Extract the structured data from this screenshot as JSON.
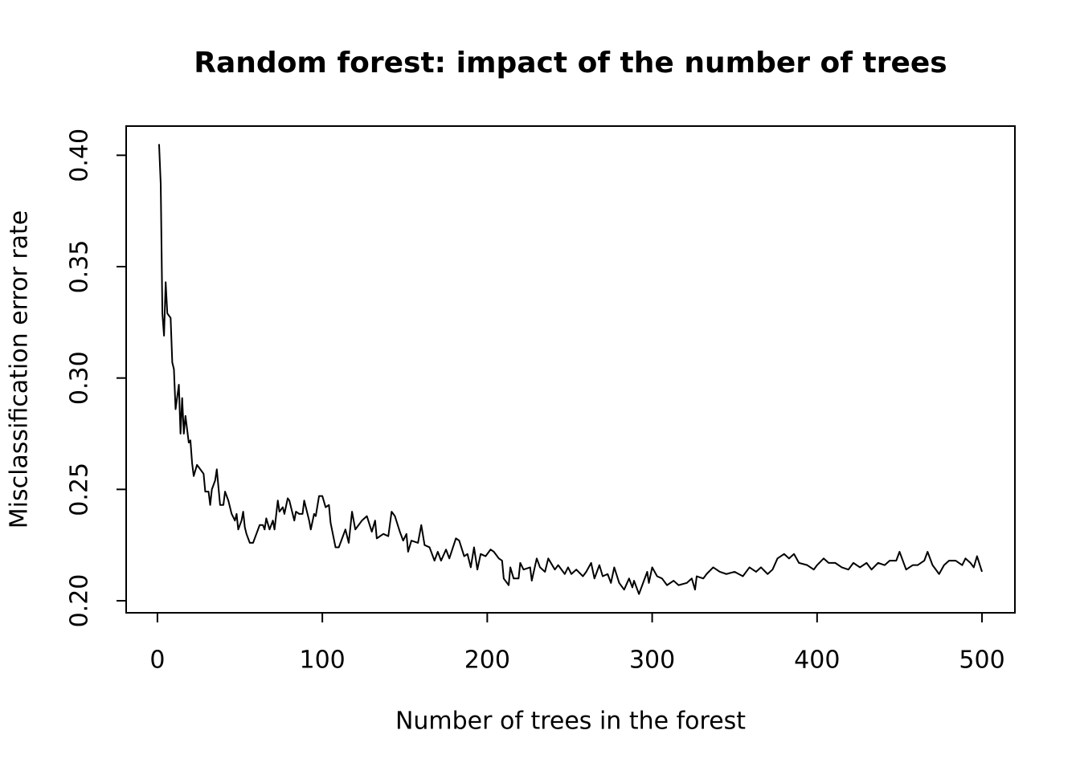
{
  "chart_data": {
    "type": "line",
    "title": "Random forest: impact of the number of trees",
    "x_label": "Number of trees in the forest",
    "y_label": "Misclassification error rate",
    "color": "#000000",
    "x": [
      1,
      2,
      3,
      4,
      5,
      6,
      8,
      9,
      10,
      11,
      13,
      14,
      15,
      16,
      17,
      19,
      20,
      21,
      22,
      24,
      26,
      28,
      29,
      31,
      32,
      33,
      35,
      36,
      38,
      40,
      41,
      43,
      45,
      47,
      48,
      49,
      51,
      52,
      53,
      54,
      56,
      58,
      60,
      62,
      64,
      65,
      66,
      68,
      70,
      71,
      73,
      74,
      76,
      77,
      79,
      80,
      82,
      83,
      84,
      86,
      88,
      89,
      91,
      92,
      93,
      95,
      96,
      98,
      100,
      102,
      104,
      105,
      108,
      110,
      112,
      114,
      116,
      118,
      120,
      124,
      127,
      130,
      132,
      133,
      137,
      140,
      142,
      144,
      147,
      149,
      151,
      152,
      154,
      158,
      160,
      162,
      165,
      168,
      170,
      172,
      175,
      177,
      181,
      183,
      186,
      188,
      190,
      192,
      194,
      196,
      199,
      202,
      204,
      207,
      209,
      210,
      213,
      214,
      216,
      219,
      220,
      222,
      226,
      227,
      230,
      232,
      235,
      237,
      241,
      243,
      247,
      249,
      251,
      254,
      258,
      260,
      263,
      265,
      268,
      270,
      273,
      275,
      277,
      280,
      283,
      286,
      288,
      289,
      292,
      294,
      297,
      298,
      300,
      303,
      306,
      309,
      313,
      316,
      321,
      324,
      326,
      327,
      331,
      333,
      337,
      341,
      345,
      350,
      355,
      359,
      363,
      366,
      370,
      373,
      376,
      380,
      383,
      386,
      389,
      394,
      398,
      400,
      404,
      407,
      411,
      415,
      419,
      422,
      426,
      430,
      433,
      437,
      441,
      444,
      448,
      450,
      454,
      458,
      461,
      465,
      467,
      470,
      474,
      477,
      480,
      484,
      488,
      490,
      493,
      495,
      497,
      500
    ],
    "values": [
      0.405,
      0.387,
      0.329,
      0.319,
      0.343,
      0.329,
      0.327,
      0.307,
      0.304,
      0.286,
      0.297,
      0.275,
      0.291,
      0.275,
      0.283,
      0.271,
      0.272,
      0.262,
      0.256,
      0.261,
      0.259,
      0.257,
      0.249,
      0.249,
      0.243,
      0.25,
      0.254,
      0.259,
      0.243,
      0.243,
      0.249,
      0.245,
      0.239,
      0.236,
      0.239,
      0.232,
      0.236,
      0.24,
      0.233,
      0.23,
      0.226,
      0.226,
      0.23,
      0.234,
      0.234,
      0.232,
      0.237,
      0.232,
      0.236,
      0.232,
      0.245,
      0.24,
      0.242,
      0.239,
      0.246,
      0.245,
      0.239,
      0.236,
      0.24,
      0.239,
      0.239,
      0.245,
      0.239,
      0.236,
      0.232,
      0.239,
      0.238,
      0.247,
      0.247,
      0.242,
      0.243,
      0.235,
      0.224,
      0.224,
      0.228,
      0.232,
      0.226,
      0.24,
      0.232,
      0.236,
      0.238,
      0.231,
      0.236,
      0.228,
      0.23,
      0.229,
      0.24,
      0.238,
      0.231,
      0.227,
      0.23,
      0.222,
      0.227,
      0.226,
      0.234,
      0.225,
      0.224,
      0.218,
      0.222,
      0.218,
      0.223,
      0.219,
      0.228,
      0.227,
      0.22,
      0.221,
      0.215,
      0.224,
      0.214,
      0.221,
      0.22,
      0.223,
      0.222,
      0.219,
      0.218,
      0.21,
      0.207,
      0.215,
      0.21,
      0.21,
      0.217,
      0.214,
      0.215,
      0.209,
      0.219,
      0.215,
      0.213,
      0.219,
      0.214,
      0.216,
      0.212,
      0.215,
      0.212,
      0.214,
      0.211,
      0.213,
      0.217,
      0.21,
      0.216,
      0.211,
      0.212,
      0.208,
      0.215,
      0.208,
      0.205,
      0.21,
      0.206,
      0.209,
      0.203,
      0.207,
      0.213,
      0.208,
      0.215,
      0.211,
      0.21,
      0.207,
      0.209,
      0.207,
      0.208,
      0.21,
      0.205,
      0.211,
      0.21,
      0.212,
      0.215,
      0.213,
      0.212,
      0.213,
      0.211,
      0.215,
      0.213,
      0.215,
      0.212,
      0.214,
      0.219,
      0.221,
      0.219,
      0.221,
      0.217,
      0.216,
      0.214,
      0.216,
      0.219,
      0.217,
      0.217,
      0.215,
      0.214,
      0.217,
      0.215,
      0.217,
      0.214,
      0.217,
      0.216,
      0.218,
      0.218,
      0.222,
      0.214,
      0.216,
      0.216,
      0.218,
      0.222,
      0.216,
      0.212,
      0.216,
      0.218,
      0.218,
      0.216,
      0.219,
      0.217,
      0.215,
      0.22,
      0.213
    ],
    "xlim": [
      -18.96,
      519.96
    ],
    "ylim": [
      0.1946,
      0.4131
    ],
    "xticks": [
      0,
      100,
      200,
      300,
      400,
      500
    ],
    "yticks": [
      {
        "value": 0.2,
        "label": "0.20"
      },
      0.25,
      {
        "value": 0.3,
        "label": "0.30"
      },
      0.35,
      {
        "value": 0.4,
        "label": "0.40"
      }
    ]
  }
}
